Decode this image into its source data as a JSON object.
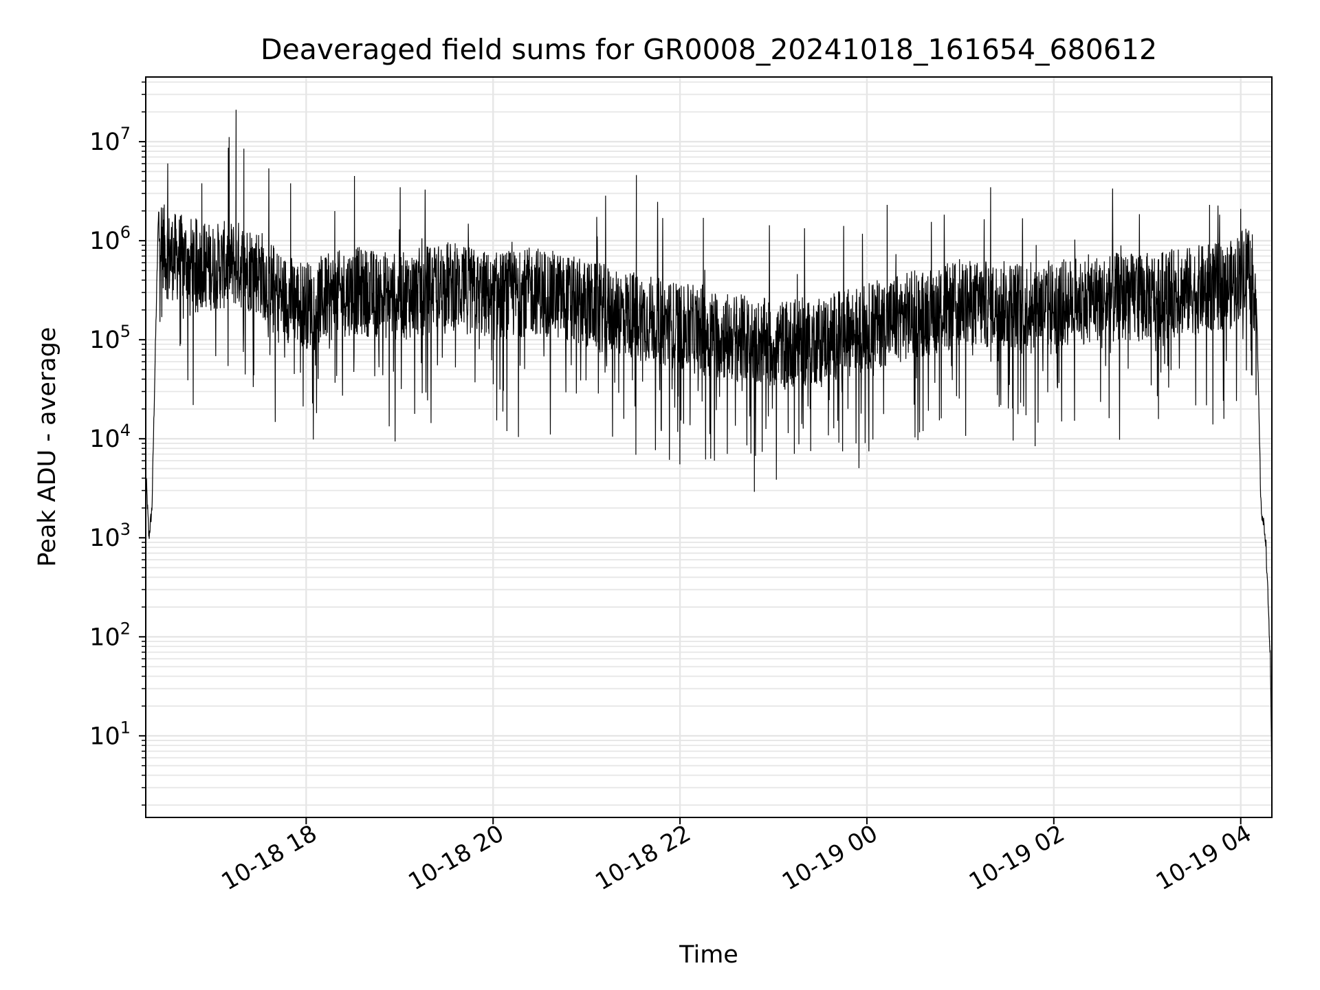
{
  "chart_data": {
    "type": "line",
    "title": "Deaveraged field sums for GR0008_20241018_161654_680612",
    "xlabel": "Time",
    "ylabel": "Peak ADU - average",
    "x_axis": {
      "kind": "time",
      "range": [
        "2024-10-18 16:17",
        "2024-10-19 04:20"
      ],
      "ticks": [
        "10-18 18",
        "10-18 20",
        "10-18 22",
        "10-19 00",
        "10-19 02",
        "10-19 04"
      ],
      "tick_times": [
        "2024-10-18 18:00",
        "2024-10-18 20:00",
        "2024-10-18 22:00",
        "2024-10-19 00:00",
        "2024-10-19 02:00",
        "2024-10-19 04:00"
      ]
    },
    "y_axis": {
      "scale": "log",
      "range": [
        1.5,
        45000000
      ],
      "ticks": [
        {
          "value": 10,
          "base": "10",
          "exp": "1"
        },
        {
          "value": 100,
          "base": "10",
          "exp": "2"
        },
        {
          "value": 1000,
          "base": "10",
          "exp": "3"
        },
        {
          "value": 10000,
          "base": "10",
          "exp": "4"
        },
        {
          "value": 100000,
          "base": "10",
          "exp": "5"
        },
        {
          "value": 1000000,
          "base": "10",
          "exp": "6"
        },
        {
          "value": 10000000,
          "base": "10",
          "exp": "7"
        }
      ]
    },
    "grid": true,
    "line_color": "#000000",
    "grid_color": "#e6e6e6",
    "series": [
      {
        "points": [
          [
            "2024-10-18 16:17",
            5000
          ],
          [
            "2024-10-18 16:19",
            1000
          ],
          [
            "2024-10-18 16:21",
            2000
          ],
          [
            "2024-10-18 16:23",
            60000
          ],
          [
            "2024-10-18 16:25",
            1500000
          ],
          [
            "2024-10-18 16:30",
            800000
          ],
          [
            "2024-10-18 16:45",
            700000
          ],
          [
            "2024-10-18 17:00",
            600000
          ],
          [
            "2024-10-18 17:15",
            650000
          ],
          [
            "2024-10-18 17:30",
            550000
          ],
          [
            "2024-10-18 17:45",
            300000
          ],
          [
            "2024-10-18 18:00",
            250000
          ],
          [
            "2024-10-18 18:30",
            350000
          ],
          [
            "2024-10-18 19:00",
            300000
          ],
          [
            "2024-10-18 19:30",
            400000
          ],
          [
            "2024-10-18 20:00",
            300000
          ],
          [
            "2024-10-18 20:30",
            350000
          ],
          [
            "2024-10-18 21:00",
            250000
          ],
          [
            "2024-10-18 21:30",
            200000
          ],
          [
            "2024-10-18 22:00",
            150000
          ],
          [
            "2024-10-18 22:30",
            120000
          ],
          [
            "2024-10-18 23:00",
            100000
          ],
          [
            "2024-10-18 23:30",
            110000
          ],
          [
            "2024-10-19 00:00",
            150000
          ],
          [
            "2024-10-19 00:30",
            200000
          ],
          [
            "2024-10-19 01:00",
            250000
          ],
          [
            "2024-10-19 01:30",
            250000
          ],
          [
            "2024-10-19 02:00",
            250000
          ],
          [
            "2024-10-19 02:30",
            300000
          ],
          [
            "2024-10-19 03:00",
            300000
          ],
          [
            "2024-10-19 03:30",
            350000
          ],
          [
            "2024-10-19 03:55",
            400000
          ],
          [
            "2024-10-19 04:05",
            700000
          ],
          [
            "2024-10-19 04:10",
            300000
          ],
          [
            "2024-10-19 04:13",
            2000
          ],
          [
            "2024-10-19 04:16",
            1000
          ],
          [
            "2024-10-19 04:19",
            60
          ],
          [
            "2024-10-19 04:20",
            3
          ]
        ],
        "spikes": [
          [
            "2024-10-18 17:15",
            21000000
          ],
          [
            "2024-10-18 17:20",
            8500000
          ],
          [
            "2024-10-18 17:50",
            3800000
          ],
          [
            "2024-10-18 16:53",
            3800000
          ],
          [
            "2024-10-18 18:31",
            4500000
          ],
          [
            "2024-10-18 21:32",
            4600000
          ],
          [
            "2024-10-18 22:15",
            1700000
          ],
          [
            "2024-10-19 00:13",
            2300000
          ],
          [
            "2024-10-19 03:40",
            2300000
          ],
          [
            "2024-10-19 04:00",
            2100000
          ]
        ]
      }
    ]
  }
}
